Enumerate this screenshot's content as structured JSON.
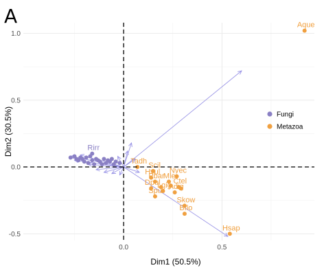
{
  "panel_label": "A",
  "chart_data": {
    "type": "scatter",
    "xlabel": "Dim1 (50.5%)",
    "ylabel": "Dim2 (30.5%)",
    "xlim": [
      -0.51,
      0.97
    ],
    "ylim": [
      -0.55,
      1.08
    ],
    "x_ticks": [
      0.0,
      0.5
    ],
    "x_tick_labels": [
      "0.0",
      "0.5"
    ],
    "y_ticks": [
      -0.5,
      0.0,
      0.5,
      1.0
    ],
    "y_tick_labels": [
      "-0.5",
      "0.0",
      "0.5",
      "1.0"
    ],
    "grid": true,
    "reference_lines": {
      "x": 0,
      "y": 0,
      "style": "dashed"
    },
    "legend": {
      "position": "right",
      "entries": [
        {
          "name": "Fungi",
          "color": "#8a80c4"
        },
        {
          "name": "Metazoa",
          "color": "#f0a040"
        }
      ]
    },
    "series": [
      {
        "name": "Fungi",
        "color": "#8a80c4",
        "points": [
          {
            "x": -0.27,
            "y": 0.07,
            "label": ""
          },
          {
            "x": -0.25,
            "y": 0.08,
            "label": ""
          },
          {
            "x": -0.24,
            "y": 0.06,
            "label": ""
          },
          {
            "x": -0.23,
            "y": 0.05,
            "label": ""
          },
          {
            "x": -0.22,
            "y": 0.07,
            "label": ""
          },
          {
            "x": -0.21,
            "y": 0.06,
            "label": ""
          },
          {
            "x": -0.2,
            "y": 0.04,
            "label": ""
          },
          {
            "x": -0.19,
            "y": 0.07,
            "label": ""
          },
          {
            "x": -0.18,
            "y": 0.03,
            "label": ""
          },
          {
            "x": -0.17,
            "y": 0.08,
            "label": ""
          },
          {
            "x": -0.16,
            "y": 0.05,
            "label": ""
          },
          {
            "x": -0.15,
            "y": 0.02,
            "label": ""
          },
          {
            "x": -0.14,
            "y": 0.06,
            "label": ""
          },
          {
            "x": -0.13,
            "y": 0.05,
            "label": ""
          },
          {
            "x": -0.12,
            "y": 0.04,
            "label": ""
          },
          {
            "x": -0.11,
            "y": 0.02,
            "label": ""
          },
          {
            "x": -0.1,
            "y": 0.06,
            "label": ""
          },
          {
            "x": -0.09,
            "y": 0.03,
            "label": ""
          },
          {
            "x": -0.08,
            "y": 0.05,
            "label": ""
          },
          {
            "x": -0.07,
            "y": 0.04,
            "label": ""
          },
          {
            "x": -0.06,
            "y": 0.06,
            "label": ""
          },
          {
            "x": -0.05,
            "y": 0.02,
            "label": ""
          },
          {
            "x": -0.04,
            "y": 0.04,
            "label": ""
          },
          {
            "x": -0.02,
            "y": 0.03,
            "label": ""
          },
          {
            "x": -0.16,
            "y": 0.1,
            "label": "Rirr"
          }
        ]
      },
      {
        "name": "Metazoa",
        "color": "#f0a040",
        "points": [
          {
            "x": 0.92,
            "y": 1.02,
            "label": "Aque"
          },
          {
            "x": 0.54,
            "y": -0.5,
            "label": "Hsap"
          },
          {
            "x": 0.07,
            "y": 0.0,
            "label": "Tadh"
          },
          {
            "x": 0.15,
            "y": -0.03,
            "label": "Scil"
          },
          {
            "x": 0.27,
            "y": -0.07,
            "label": "Nvec"
          },
          {
            "x": 0.14,
            "y": -0.08,
            "label": "Hvul"
          },
          {
            "x": 0.16,
            "y": -0.11,
            "label": "Pbar"
          },
          {
            "x": 0.23,
            "y": -0.11,
            "label": "Mlei"
          },
          {
            "x": 0.28,
            "y": -0.15,
            "label": "Ctel"
          },
          {
            "x": 0.14,
            "y": -0.16,
            "label": "Dpul"
          },
          {
            "x": 0.26,
            "y": -0.19,
            "label": "Adig"
          },
          {
            "x": 0.2,
            "y": -0.18,
            "label": "Lgig"
          },
          {
            "x": 0.16,
            "y": -0.22,
            "label": "Spur"
          },
          {
            "x": 0.31,
            "y": -0.29,
            "label": "Skow"
          },
          {
            "x": 0.31,
            "y": -0.35,
            "label": "Bflo"
          },
          {
            "x": 0.19,
            "y": -0.15,
            "label": ""
          },
          {
            "x": 0.24,
            "y": -0.14,
            "label": ""
          },
          {
            "x": 0.29,
            "y": -0.16,
            "label": ""
          }
        ]
      }
    ],
    "arrows": [
      {
        "x": 0.6,
        "y": 0.72
      },
      {
        "x": 0.53,
        "y": -0.52
      },
      {
        "x": -0.27,
        "y": 0.08
      },
      {
        "x": -0.25,
        "y": 0.05
      },
      {
        "x": -0.22,
        "y": 0.09
      },
      {
        "x": -0.18,
        "y": 0.02
      },
      {
        "x": -0.14,
        "y": -0.02
      },
      {
        "x": -0.1,
        "y": -0.04
      },
      {
        "x": -0.06,
        "y": -0.05
      },
      {
        "x": -0.02,
        "y": -0.06
      },
      {
        "x": 0.04,
        "y": 0.18
      },
      {
        "x": 0.02,
        "y": 0.12
      },
      {
        "x": -0.03,
        "y": 0.08
      },
      {
        "x": 0.06,
        "y": 0.06
      },
      {
        "x": 0.08,
        "y": -0.04
      }
    ]
  }
}
